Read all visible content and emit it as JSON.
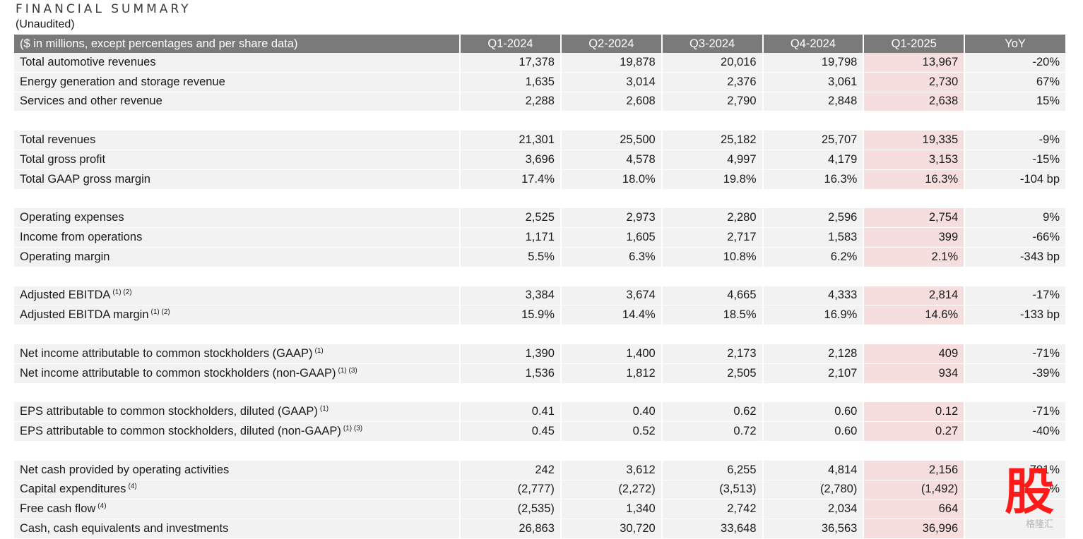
{
  "title": "FINANCIAL SUMMARY",
  "subtitle": "(Unaudited)",
  "table": {
    "header": {
      "label": "($ in millions, except percentages and per share data)",
      "columns": [
        "Q1-2024",
        "Q2-2024",
        "Q3-2024",
        "Q4-2024",
        "Q1-2025",
        "YoY"
      ]
    },
    "rows": [
      {
        "label": "Total automotive revenues",
        "footnote": "",
        "values": [
          "17,378",
          "19,878",
          "20,016",
          "19,798",
          "13,967",
          "-20%"
        ]
      },
      {
        "label": "Energy generation and storage revenue",
        "footnote": "",
        "values": [
          "1,635",
          "3,014",
          "2,376",
          "3,061",
          "2,730",
          "67%"
        ]
      },
      {
        "label": "Services and other revenue",
        "footnote": "",
        "values": [
          "2,288",
          "2,608",
          "2,790",
          "2,848",
          "2,638",
          "15%"
        ]
      },
      {
        "gap": true
      },
      {
        "label": "Total revenues",
        "footnote": "",
        "values": [
          "21,301",
          "25,500",
          "25,182",
          "25,707",
          "19,335",
          "-9%"
        ]
      },
      {
        "label": "Total gross profit",
        "footnote": "",
        "values": [
          "3,696",
          "4,578",
          "4,997",
          "4,179",
          "3,153",
          "-15%"
        ]
      },
      {
        "label": "Total GAAP gross margin",
        "footnote": "",
        "values": [
          "17.4%",
          "18.0%",
          "19.8%",
          "16.3%",
          "16.3%",
          "-104 bp"
        ]
      },
      {
        "gap": true
      },
      {
        "label": "Operating expenses",
        "footnote": "",
        "values": [
          "2,525",
          "2,973",
          "2,280",
          "2,596",
          "2,754",
          "9%"
        ]
      },
      {
        "label": "Income from operations",
        "footnote": "",
        "values": [
          "1,171",
          "1,605",
          "2,717",
          "1,583",
          "399",
          "-66%"
        ]
      },
      {
        "label": "Operating margin",
        "footnote": "",
        "values": [
          "5.5%",
          "6.3%",
          "10.8%",
          "6.2%",
          "2.1%",
          "-343 bp"
        ]
      },
      {
        "gap": true
      },
      {
        "label": "Adjusted EBITDA",
        "footnote": "(1) (2)",
        "values": [
          "3,384",
          "3,674",
          "4,665",
          "4,333",
          "2,814",
          "-17%"
        ]
      },
      {
        "label": "Adjusted EBITDA margin",
        "footnote": "(1) (2)",
        "values": [
          "15.9%",
          "14.4%",
          "18.5%",
          "16.9%",
          "14.6%",
          "-133 bp"
        ]
      },
      {
        "gap": true
      },
      {
        "label": "Net income attributable to common stockholders (GAAP)",
        "footnote": "(1)",
        "values": [
          "1,390",
          "1,400",
          "2,173",
          "2,128",
          "409",
          "-71%"
        ]
      },
      {
        "label": "Net income attributable to common stockholders (non-GAAP)",
        "footnote": "(1) (3)",
        "values": [
          "1,536",
          "1,812",
          "2,505",
          "2,107",
          "934",
          "-39%"
        ]
      },
      {
        "gap": true
      },
      {
        "label": "EPS attributable to common stockholders, diluted (GAAP)",
        "footnote": "(1)",
        "values": [
          "0.41",
          "0.40",
          "0.62",
          "0.60",
          "0.12",
          "-71%"
        ]
      },
      {
        "label": "EPS attributable to common stockholders, diluted (non-GAAP)",
        "footnote": "(1) (3)",
        "values": [
          "0.45",
          "0.52",
          "0.72",
          "0.60",
          "0.27",
          "-40%"
        ]
      },
      {
        "gap": true
      },
      {
        "label": "Net cash provided by operating activities",
        "footnote": "",
        "values": [
          "242",
          "3,612",
          "6,255",
          "4,814",
          "2,156",
          "791%"
        ]
      },
      {
        "label": "Capital expenditures",
        "footnote": "(4)",
        "values": [
          "(2,777)",
          "(2,272)",
          "(3,513)",
          "(2,780)",
          "(1,492)",
          "%"
        ]
      },
      {
        "label": "Free cash flow",
        "footnote": "(4)",
        "values": [
          "(2,535)",
          "1,340",
          "2,742",
          "2,034",
          "664",
          ""
        ]
      },
      {
        "label": "Cash, cash equivalents and investments",
        "footnote": "",
        "values": [
          "26,863",
          "30,720",
          "33,648",
          "36,563",
          "36,996",
          ""
        ]
      }
    ],
    "highlight_column_index": 4,
    "highlight_color": "#f6dede",
    "header_color": "#7a7a7a",
    "row_color": "#f2f2f2"
  },
  "watermark": {
    "glyph": "股",
    "text": "格隆汇",
    "color": "#ff1a1a"
  }
}
